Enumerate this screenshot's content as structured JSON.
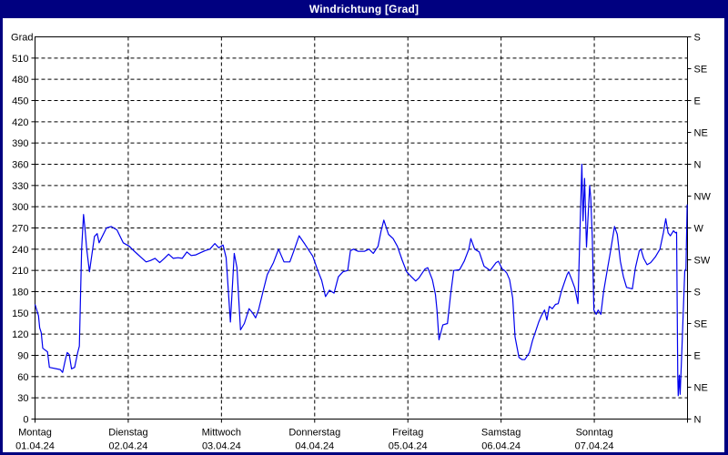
{
  "window": {
    "title": "Windrichtung [Grad]"
  },
  "colors": {
    "frame": "#000080",
    "panel": "#ffffff",
    "title_text": "#ffffff",
    "axis_text": "#000000",
    "grid": "#000000",
    "line": "#0000ee"
  },
  "chart_data": {
    "type": "line",
    "title": "Windrichtung [Grad]",
    "grid": "dashed",
    "legend": "none",
    "y_axis_left": {
      "label": "Grad",
      "range": [
        0,
        540
      ],
      "ticks": [
        510,
        480,
        450,
        420,
        390,
        360,
        330,
        300,
        270,
        240,
        210,
        180,
        150,
        120,
        90,
        60,
        30,
        0
      ]
    },
    "y_axis_right": {
      "ticks": [
        {
          "value": 540,
          "label": "S"
        },
        {
          "value": 495,
          "label": "SE"
        },
        {
          "value": 450,
          "label": "E"
        },
        {
          "value": 405,
          "label": "NE"
        },
        {
          "value": 360,
          "label": "N"
        },
        {
          "value": 315,
          "label": "NW"
        },
        {
          "value": 270,
          "label": "W"
        },
        {
          "value": 225,
          "label": "SW"
        },
        {
          "value": 180,
          "label": "S"
        },
        {
          "value": 135,
          "label": "SE"
        },
        {
          "value": 90,
          "label": "E"
        },
        {
          "value": 45,
          "label": "NE"
        },
        {
          "value": 0,
          "label": "N"
        }
      ]
    },
    "x_axis": {
      "range_hours": [
        0,
        168
      ],
      "days": [
        {
          "name": "Montag",
          "date": "01.04.24",
          "start_hour": 0
        },
        {
          "name": "Dienstag",
          "date": "02.04.24",
          "start_hour": 24
        },
        {
          "name": "Mittwoch",
          "date": "03.04.24",
          "start_hour": 48
        },
        {
          "name": "Donnerstag",
          "date": "04.04.24",
          "start_hour": 72
        },
        {
          "name": "Freitag",
          "date": "05.04.24",
          "start_hour": 96
        },
        {
          "name": "Samstag",
          "date": "06.04.24",
          "start_hour": 120
        },
        {
          "name": "Sonntag",
          "date": "07.04.24",
          "start_hour": 144
        }
      ]
    },
    "series": [
      {
        "name": "Windrichtung",
        "color": "#0000ee",
        "points": [
          [
            0,
            162
          ],
          [
            0.9,
            146
          ],
          [
            1.2,
            129
          ],
          [
            1.6,
            122
          ],
          [
            2,
            100
          ],
          [
            3.2,
            95
          ],
          [
            3.7,
            73
          ],
          [
            6.5,
            70
          ],
          [
            7.1,
            66
          ],
          [
            7.9,
            86
          ],
          [
            8.3,
            94
          ],
          [
            8.8,
            91
          ],
          [
            9.4,
            71
          ],
          [
            10.2,
            73
          ],
          [
            11,
            94
          ],
          [
            11.4,
            103
          ],
          [
            12,
            240
          ],
          [
            12.5,
            289
          ],
          [
            12.9,
            266
          ],
          [
            13.3,
            240
          ],
          [
            14,
            208
          ],
          [
            15.3,
            258
          ],
          [
            16,
            262
          ],
          [
            16.5,
            249
          ],
          [
            18.4,
            270
          ],
          [
            19.6,
            272
          ],
          [
            21.1,
            267
          ],
          [
            22.7,
            249
          ],
          [
            24.3,
            244
          ],
          [
            25,
            240
          ],
          [
            26.2,
            234
          ],
          [
            27.4,
            228
          ],
          [
            28.6,
            222
          ],
          [
            29.7,
            224
          ],
          [
            30.9,
            227
          ],
          [
            32.1,
            221
          ],
          [
            33.3,
            227
          ],
          [
            34.4,
            233
          ],
          [
            35.6,
            227
          ],
          [
            36.8,
            228
          ],
          [
            37.9,
            227
          ],
          [
            39.1,
            236
          ],
          [
            40.2,
            231
          ],
          [
            41.4,
            232
          ],
          [
            42.6,
            235
          ],
          [
            43.8,
            238
          ],
          [
            45,
            240
          ],
          [
            46.3,
            248
          ],
          [
            47.3,
            242
          ],
          [
            48.4,
            246
          ],
          [
            49.2,
            228
          ],
          [
            50.3,
            137
          ],
          [
            51.3,
            234
          ],
          [
            52,
            214
          ],
          [
            52.9,
            126
          ],
          [
            53.9,
            135
          ],
          [
            55.1,
            156
          ],
          [
            56,
            150
          ],
          [
            56.8,
            143
          ],
          [
            57.6,
            155
          ],
          [
            58.6,
            178
          ],
          [
            59.8,
            204
          ],
          [
            61.4,
            221
          ],
          [
            62.7,
            240
          ],
          [
            64.1,
            222
          ],
          [
            65.6,
            222
          ],
          [
            66.8,
            240
          ],
          [
            68,
            259
          ],
          [
            69.5,
            247
          ],
          [
            71.5,
            230
          ],
          [
            72.8,
            210
          ],
          [
            73.8,
            196
          ],
          [
            74.8,
            173
          ],
          [
            75.8,
            182
          ],
          [
            77,
            178
          ],
          [
            78.1,
            201
          ],
          [
            79.3,
            208
          ],
          [
            80.5,
            210
          ],
          [
            81.2,
            238
          ],
          [
            82,
            240
          ],
          [
            83.2,
            237
          ],
          [
            84.8,
            237
          ],
          [
            86,
            240
          ],
          [
            87.1,
            234
          ],
          [
            88.3,
            244
          ],
          [
            89.1,
            266
          ],
          [
            89.8,
            281
          ],
          [
            91,
            261
          ],
          [
            92.2,
            255
          ],
          [
            93.3,
            244
          ],
          [
            94.5,
            225
          ],
          [
            95.7,
            208
          ],
          [
            96.9,
            201
          ],
          [
            98,
            195
          ],
          [
            98.8,
            199
          ],
          [
            100.4,
            212
          ],
          [
            101.1,
            214
          ],
          [
            102.3,
            197
          ],
          [
            103.1,
            176
          ],
          [
            103.5,
            154
          ],
          [
            104,
            112
          ],
          [
            105,
            133
          ],
          [
            106.2,
            135
          ],
          [
            107,
            176
          ],
          [
            107.8,
            210
          ],
          [
            109.3,
            211
          ],
          [
            110.5,
            223
          ],
          [
            111.7,
            240
          ],
          [
            112.2,
            255
          ],
          [
            113.2,
            240
          ],
          [
            114.4,
            236
          ],
          [
            115.6,
            216
          ],
          [
            117.2,
            210
          ],
          [
            118.7,
            221
          ],
          [
            119.3,
            223
          ],
          [
            120.3,
            212
          ],
          [
            120.9,
            210
          ],
          [
            121.5,
            206
          ],
          [
            122.2,
            197
          ],
          [
            123,
            171
          ],
          [
            123.6,
            116
          ],
          [
            124.6,
            87
          ],
          [
            125.4,
            84
          ],
          [
            126.1,
            84
          ],
          [
            127.3,
            94
          ],
          [
            128.1,
            111
          ],
          [
            128.9,
            124
          ],
          [
            129.7,
            137
          ],
          [
            130.4,
            146
          ],
          [
            131.2,
            154
          ],
          [
            131.8,
            140
          ],
          [
            132.4,
            159
          ],
          [
            133.2,
            156
          ],
          [
            134,
            162
          ],
          [
            134.7,
            163
          ],
          [
            135.5,
            180
          ],
          [
            136.3,
            193
          ],
          [
            137,
            204
          ],
          [
            137.4,
            208
          ],
          [
            138.2,
            197
          ],
          [
            139,
            185
          ],
          [
            139.5,
            171
          ],
          [
            139.8,
            163
          ],
          [
            140.8,
            360
          ],
          [
            141.1,
            280
          ],
          [
            141.5,
            340
          ],
          [
            142,
            243
          ],
          [
            142.8,
            330
          ],
          [
            143.1,
            312
          ],
          [
            143.5,
            255
          ],
          [
            143.9,
            154
          ],
          [
            144.5,
            148
          ],
          [
            145,
            154
          ],
          [
            145.7,
            148
          ],
          [
            146.4,
            180
          ],
          [
            147.2,
            206
          ],
          [
            148,
            231
          ],
          [
            149.2,
            272
          ],
          [
            149.9,
            261
          ],
          [
            150.7,
            223
          ],
          [
            151.5,
            201
          ],
          [
            152.3,
            186
          ],
          [
            153.8,
            184
          ],
          [
            154.6,
            214
          ],
          [
            155.6,
            238
          ],
          [
            156,
            240
          ],
          [
            156.7,
            227
          ],
          [
            157.6,
            218
          ],
          [
            158.5,
            221
          ],
          [
            159.7,
            229
          ],
          [
            160.9,
            240
          ],
          [
            161.8,
            263
          ],
          [
            162.4,
            283
          ],
          [
            163,
            263
          ],
          [
            163.6,
            259
          ],
          [
            164.4,
            266
          ],
          [
            164.9,
            263
          ],
          [
            165.2,
            264
          ],
          [
            165.5,
            60
          ],
          [
            165.6,
            33
          ],
          [
            165.9,
            62
          ],
          [
            166.1,
            35
          ],
          [
            166.5,
            90
          ],
          [
            166.9,
            150
          ],
          [
            167.3,
            210
          ],
          [
            167.6,
            212
          ],
          [
            167.9,
            303
          ]
        ]
      }
    ]
  }
}
